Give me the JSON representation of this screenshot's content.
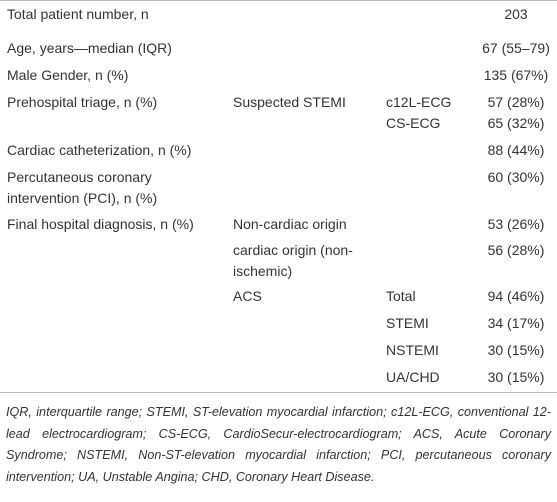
{
  "table": {
    "rows": [
      [
        "Total patient number, n",
        null,
        null,
        "203"
      ],
      [
        "Age, years—median (IQR)",
        null,
        null,
        "67 (55–79)"
      ],
      [
        "Male Gender, n (%)",
        null,
        null,
        "135 (67%)"
      ],
      [
        "Prehospital triage, n (%)",
        "Suspected STEMI",
        "c12L-ECG",
        "57 (28%)"
      ],
      [
        null,
        null,
        "CS-ECG",
        "65 (32%)"
      ],
      [
        "Cardiac catheterization, n (%)",
        null,
        null,
        "88 (44%)"
      ],
      [
        "Percutaneous coronary intervention (PCI), n (%)",
        null,
        null,
        "60 (30%)"
      ],
      [
        "Final hospital diagnosis, n (%)",
        "Non-cardiac origin",
        null,
        "53 (26%)"
      ],
      [
        null,
        "cardiac origin (non-ischemic)",
        null,
        "56 (28%)"
      ],
      [
        null,
        "ACS",
        "Total",
        "94 (46%)"
      ],
      [
        null,
        null,
        "STEMI",
        "34 (17%)"
      ],
      [
        null,
        null,
        "NSTEMI",
        "30 (15%)"
      ],
      [
        null,
        null,
        "UA/CHD",
        "30 (15%)"
      ]
    ]
  },
  "footnote": "IQR, interquartile range; STEMI, ST-elevation myocardial infarction; c12L-ECG, conventional 12-lead electrocardiogram; CS-ECG, CardioSecur-electrocardiogram; ACS, Acute Coronary Syndrome; NSTEMI, Non-ST-elevation myocardial infarction; PCI, percutaneous coronary intervention; UA, Unstable Angina; CHD, Coronary Heart Disease."
}
